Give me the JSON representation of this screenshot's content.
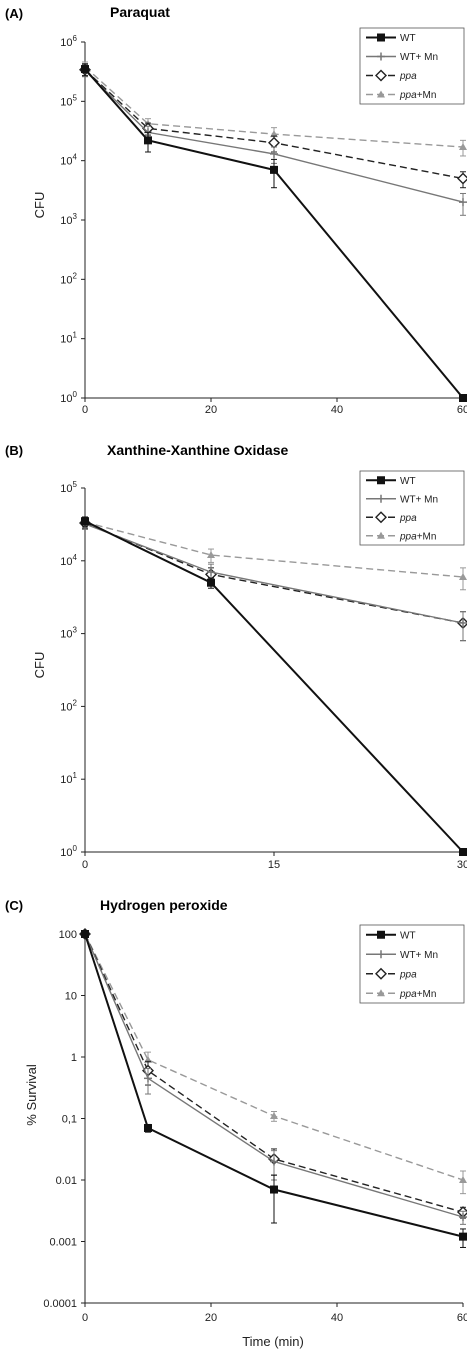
{
  "chart_data": [
    {
      "type": "line",
      "panel": "(A)",
      "title": "Paraquat",
      "xlabel": "",
      "ylabel": "CFU",
      "yscale": "log",
      "xlim": [
        0,
        60
      ],
      "ylim": [
        1,
        1000000
      ],
      "x_ticks": [
        "0",
        "20",
        "40",
        "60"
      ],
      "y_tick_labels": [
        {
          "value": 1,
          "base": "10",
          "exp": "0"
        },
        {
          "value": 10,
          "base": "10",
          "exp": "1"
        },
        {
          "value": 100,
          "base": "10",
          "exp": "2"
        },
        {
          "value": 1000,
          "base": "10",
          "exp": "3"
        },
        {
          "value": 10000,
          "base": "10",
          "exp": "4"
        },
        {
          "value": 100000,
          "base": "10",
          "exp": "5"
        },
        {
          "value": 1000000,
          "base": "10",
          "exp": "6"
        }
      ],
      "legend_position": "top-right",
      "series": [
        {
          "name": "WT",
          "x": [
            0,
            10,
            30,
            60
          ],
          "y": [
            350000,
            22000,
            7000,
            1
          ],
          "err": [
            80000,
            8000,
            3500,
            0
          ]
        },
        {
          "name": "WT+ Mn",
          "x": [
            0,
            10,
            30,
            60
          ],
          "y": [
            330000,
            30000,
            13000,
            2000
          ],
          "err": [
            70000,
            8000,
            4000,
            800
          ]
        },
        {
          "name": "ppa",
          "x": [
            0,
            10,
            30,
            60
          ],
          "y": [
            340000,
            35000,
            20000,
            5000
          ],
          "err": [
            70000,
            8000,
            6000,
            1500
          ]
        },
        {
          "name": "ppa+Mn",
          "x": [
            0,
            10,
            30,
            60
          ],
          "y": [
            380000,
            42000,
            28000,
            17000
          ],
          "err": [
            80000,
            9000,
            8000,
            5000
          ]
        }
      ]
    },
    {
      "type": "line",
      "panel": "(B)",
      "title": "Xanthine-Xanthine Oxidase",
      "xlabel": "",
      "ylabel": "CFU",
      "yscale": "log",
      "xlim": [
        0,
        30
      ],
      "ylim": [
        1,
        100000
      ],
      "x_ticks": [
        "0",
        "15",
        "30"
      ],
      "y_tick_labels": [
        {
          "value": 1,
          "base": "10",
          "exp": "0"
        },
        {
          "value": 10,
          "base": "10",
          "exp": "1"
        },
        {
          "value": 100,
          "base": "10",
          "exp": "2"
        },
        {
          "value": 1000,
          "base": "10",
          "exp": "3"
        },
        {
          "value": 10000,
          "base": "10",
          "exp": "4"
        },
        {
          "value": 100000,
          "base": "10",
          "exp": "5"
        }
      ],
      "legend_position": "top-right",
      "series": [
        {
          "name": "WT",
          "x": [
            0,
            10,
            30
          ],
          "y": [
            35000,
            5000,
            1
          ],
          "err": [
            5000,
            800,
            0
          ]
        },
        {
          "name": "WT+ Mn",
          "x": [
            0,
            10,
            30
          ],
          "y": [
            32000,
            7000,
            1400
          ],
          "err": [
            5000,
            2000,
            600
          ]
        },
        {
          "name": "ppa",
          "x": [
            0,
            10,
            30
          ],
          "y": [
            33000,
            6500,
            1400
          ],
          "err": [
            5000,
            1500,
            600
          ]
        },
        {
          "name": "ppa+Mn",
          "x": [
            0,
            10,
            30
          ],
          "y": [
            34000,
            12000,
            6000
          ],
          "err": [
            5000,
            2500,
            2000
          ]
        }
      ]
    },
    {
      "type": "line",
      "panel": "(C)",
      "title": "Hydrogen peroxide",
      "xlabel": "Time (min)",
      "ylabel": "% Survival",
      "yscale": "log",
      "xlim": [
        0,
        60
      ],
      "ylim": [
        0.0001,
        100
      ],
      "x_ticks": [
        "0",
        "20",
        "40",
        "60"
      ],
      "y_tick_labels": [
        {
          "value": 0.0001,
          "label": "0.0001"
        },
        {
          "value": 0.001,
          "label": "0.001"
        },
        {
          "value": 0.01,
          "label": "0.01"
        },
        {
          "value": 0.1,
          "label": "0,1"
        },
        {
          "value": 1,
          "label": "1"
        },
        {
          "value": 10,
          "label": "10"
        },
        {
          "value": 100,
          "label": "100"
        }
      ],
      "legend_position": "top-right",
      "series": [
        {
          "name": "WT",
          "x": [
            0,
            10,
            30,
            60
          ],
          "y": [
            100,
            0.07,
            0.007,
            0.0012
          ],
          "err": [
            0,
            0.01,
            0.005,
            0.0004
          ]
        },
        {
          "name": "WT+ Mn",
          "x": [
            0,
            10,
            30,
            60
          ],
          "y": [
            100,
            0.45,
            0.02,
            0.0025
          ],
          "err": [
            0,
            0.2,
            0.01,
            0.0006
          ]
        },
        {
          "name": "ppa",
          "x": [
            0,
            10,
            30,
            60
          ],
          "y": [
            100,
            0.6,
            0.022,
            0.003
          ],
          "err": [
            0,
            0.25,
            0.01,
            0.0006
          ]
        },
        {
          "name": "ppa+Mn",
          "x": [
            0,
            10,
            30,
            60
          ],
          "y": [
            100,
            0.9,
            0.11,
            0.01
          ],
          "err": [
            0,
            0.3,
            0.02,
            0.004
          ]
        }
      ]
    }
  ],
  "series_styles": [
    {
      "name": "WT",
      "color": "#111111",
      "dash": "",
      "marker": "square-filled"
    },
    {
      "name": "WT+ Mn",
      "color": "#777777",
      "dash": "",
      "marker": "plus"
    },
    {
      "name": "ppa",
      "color": "#222222",
      "dash": "7,4",
      "marker": "diamond-open"
    },
    {
      "name": "ppa+Mn",
      "color": "#999999",
      "dash": "7,4",
      "marker": "triangle-filled"
    }
  ],
  "legend_labels": [
    {
      "name": "WT",
      "italic": ""
    },
    {
      "name": "WT+ Mn",
      "italic": ""
    },
    {
      "name": "ppa",
      "italic": "ppa",
      "suffix": ""
    },
    {
      "name": "ppa+Mn",
      "italic": "ppa",
      "suffix": "+Mn"
    }
  ]
}
